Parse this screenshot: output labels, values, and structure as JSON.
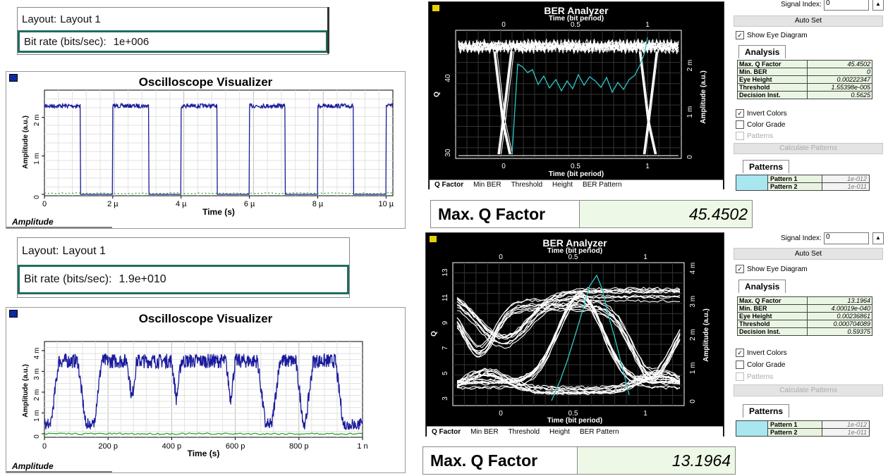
{
  "top_left": {
    "layout": {
      "label": "Layout:",
      "value": "Layout 1"
    },
    "bitrate": {
      "label": "Bit rate (bits/sec):",
      "value": "1e+006"
    },
    "scope": {
      "title": "Oscilloscope Visualizer",
      "ylabel": "Amplitude (a.u.)",
      "xlabel": "Time (s)",
      "yticks": [
        "2 m",
        "1 m",
        "0"
      ],
      "xticks": [
        "0",
        "2 µ",
        "4 µ",
        "6 µ",
        "8 µ",
        "10 µ"
      ],
      "tab": "Amplitude"
    }
  },
  "bottom_left": {
    "layout": {
      "label": "Layout:",
      "value": "Layout 1"
    },
    "bitrate": {
      "label": "Bit rate (bits/sec):",
      "value": "1.9e+010"
    },
    "scope": {
      "title": "Oscilloscope Visualizer",
      "ylabel": "Amplitude (a.u.)",
      "xlabel": "Time (s)",
      "yticks": [
        "4 m",
        "3 m",
        "2 m",
        "1 m",
        "0"
      ],
      "xticks": [
        "0",
        "200 p",
        "400 p",
        "600 p",
        "800 p",
        "1 n"
      ],
      "tab": "Amplitude"
    }
  },
  "ber_top": {
    "title": "BER Analyzer",
    "top_axis": "Time (bit period)",
    "bottom_axis": "Time (bit period)",
    "ylabel_left": "Q",
    "ylabel_right": "Amplitude (a.u.)",
    "xticks": [
      "0",
      "0.5",
      "1"
    ],
    "yticks_left": [
      "40",
      "30"
    ],
    "yticks_right": [
      "2 m",
      "1 m",
      "0"
    ],
    "tabs": [
      "Q Factor",
      "Min BER",
      "Threshold",
      "Height",
      "BER Pattern"
    ],
    "panel": {
      "signal_index_label": "Signal Index:",
      "signal_index": "0",
      "auto_set": "Auto Set",
      "show_eye": "Show Eye Diagram",
      "analysis": "Analysis",
      "table": [
        {
          "k": "Max. Q Factor",
          "v": "45.4502"
        },
        {
          "k": "Min. BER",
          "v": "0"
        },
        {
          "k": "Eye Height",
          "v": "0.00222347"
        },
        {
          "k": "Threshold",
          "v": "1.55398e-005"
        },
        {
          "k": "Decision Inst.",
          "v": "0.5625"
        }
      ],
      "invert": "Invert Colors",
      "color_grade": "Color Grade",
      "patterns_chk": "Patterns",
      "calc": "Calculate Patterns",
      "patterns": "Patterns",
      "ptable": [
        {
          "k": "Pattern 1",
          "v": "1e-012"
        },
        {
          "k": "Pattern 2",
          "v": "1e-011"
        }
      ]
    },
    "readout": {
      "label": "Max. Q Factor",
      "value": "45.4502"
    }
  },
  "ber_bottom": {
    "title": "BER Analyzer",
    "top_axis": "Time (bit period)",
    "bottom_axis": "Time (bit period)",
    "ylabel_left": "Q",
    "ylabel_right": "Amplitude (a.u.)",
    "xticks": [
      "0",
      "0.5",
      "1"
    ],
    "yticks_left": [
      "13",
      "11",
      "9",
      "7",
      "5",
      "3"
    ],
    "yticks_right": [
      "4 m",
      "3 m",
      "2 m",
      "1 m",
      "0"
    ],
    "tabs": [
      "Q Factor",
      "Min BER",
      "Threshold",
      "Height",
      "BER Pattern"
    ],
    "panel": {
      "signal_index_label": "Signal Index:",
      "signal_index": "0",
      "auto_set": "Auto Set",
      "show_eye": "Show Eye Diagram",
      "analysis": "Analysis",
      "table": [
        {
          "k": "Max. Q Factor",
          "v": "13.1964"
        },
        {
          "k": "Min. BER",
          "v": "4.00019e-040"
        },
        {
          "k": "Eye Height",
          "v": "0.00236861"
        },
        {
          "k": "Threshold",
          "v": "0.000704089"
        },
        {
          "k": "Decision Inst.",
          "v": "0.59375"
        }
      ],
      "invert": "Invert Colors",
      "color_grade": "Color Grade",
      "patterns_chk": "Patterns",
      "calc": "Calculate Patterns",
      "patterns": "Patterns",
      "ptable": [
        {
          "k": "Pattern 1",
          "v": "1e-012"
        },
        {
          "k": "Pattern 2",
          "v": "1e-011"
        }
      ]
    },
    "readout": {
      "label": "Max. Q Factor",
      "value": "13.1964"
    }
  },
  "colors": {
    "trace": "#1a1a9c",
    "noise": "#1fa01f",
    "q_curve": "#2fc6c6",
    "eye": "#ffffff",
    "accent": "#1f6e5e"
  }
}
